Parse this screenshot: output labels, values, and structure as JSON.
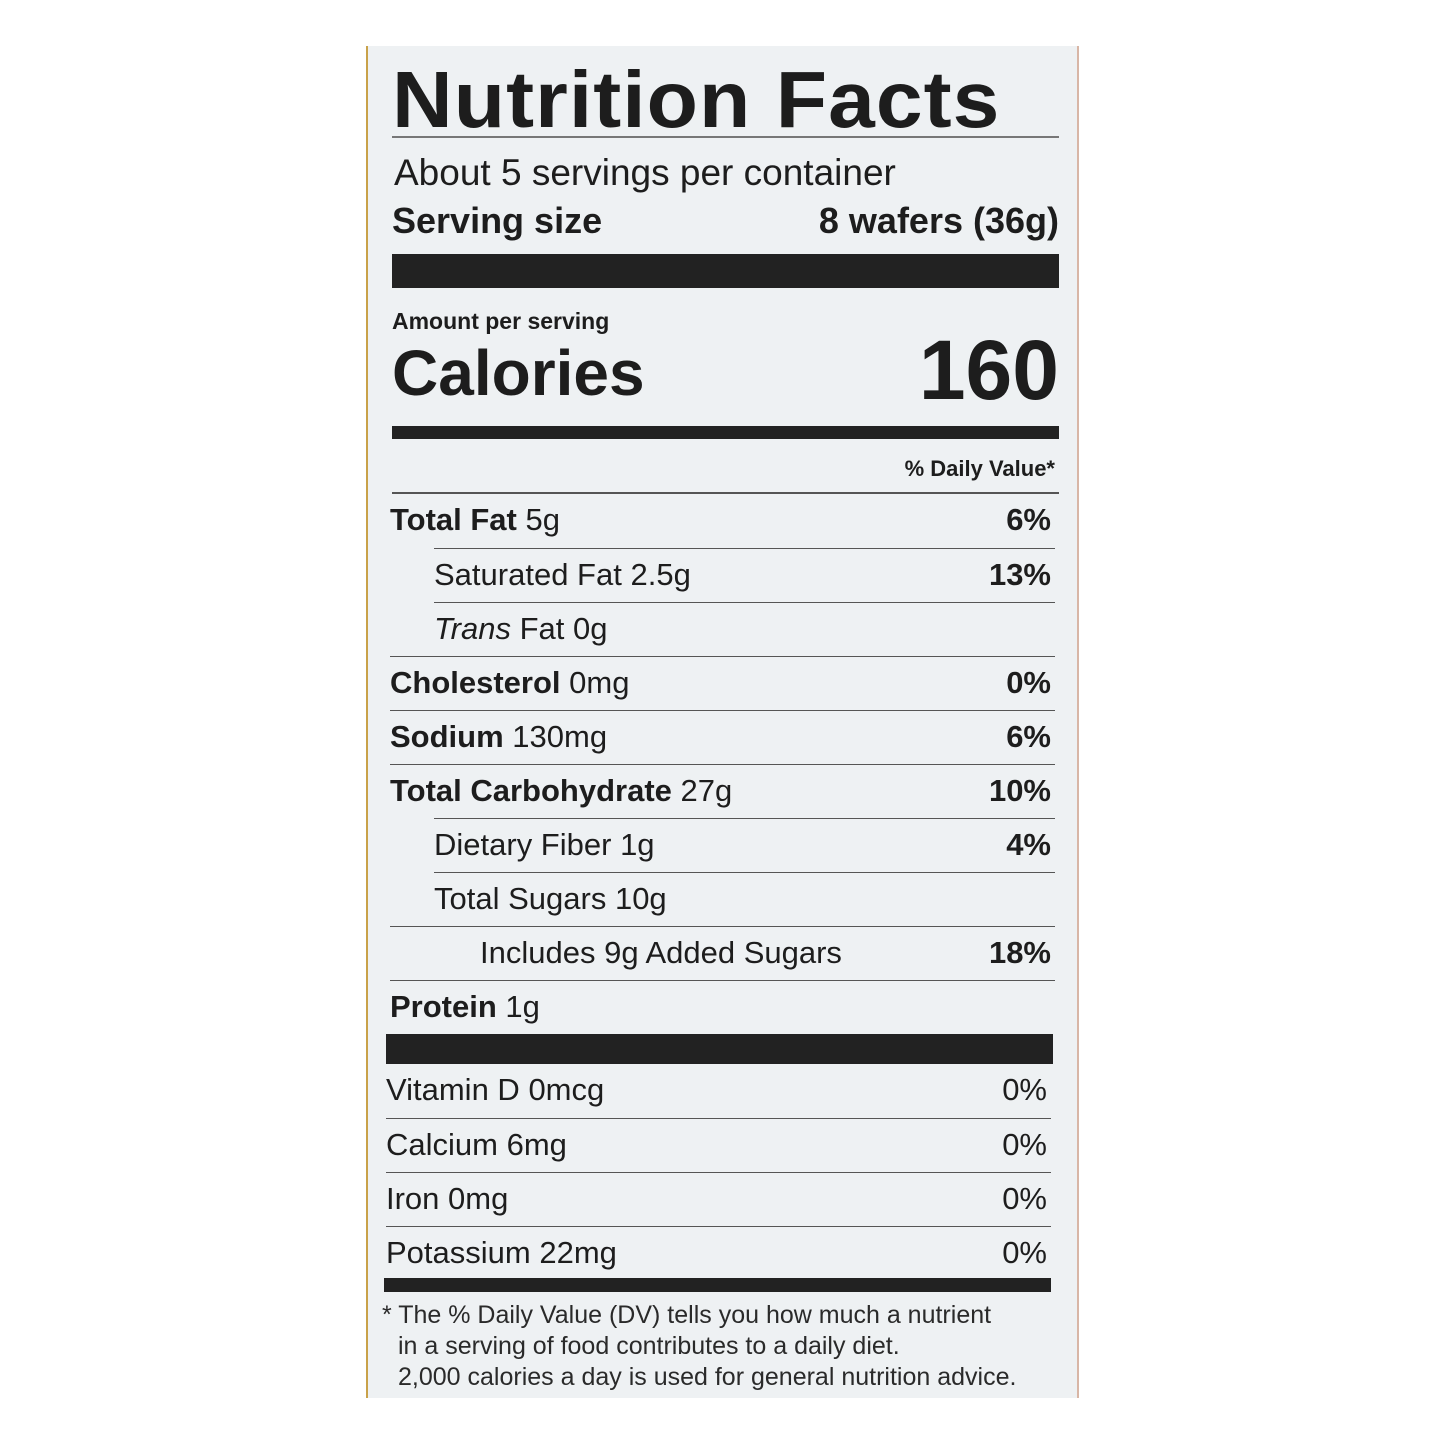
{
  "title": "Nutrition Facts",
  "servings_per_container": "About 5 servings per container",
  "serving_size_label": "Serving size",
  "serving_size_value": "8 wafers (36g)",
  "amount_per_serving": "Amount per serving",
  "calories_label": "Calories",
  "calories_value": "160",
  "daily_value_header": "% Daily Value*",
  "nutrients": [
    {
      "name": "Total Fat",
      "amount": "5g",
      "dv": "6%",
      "bold": true,
      "indent": 0
    },
    {
      "name": "Saturated Fat",
      "amount": "2.5g",
      "dv": "13%",
      "bold": false,
      "indent": 1
    },
    {
      "name": "Trans",
      "name_suffix": "Fat",
      "amount": "0g",
      "dv": "",
      "bold": false,
      "indent": 1
    },
    {
      "name": "Cholesterol",
      "amount": "0mg",
      "dv": "0%",
      "bold": true,
      "indent": 0
    },
    {
      "name": "Sodium",
      "amount": "130mg",
      "dv": "6%",
      "bold": true,
      "indent": 0
    },
    {
      "name": "Total Carbohydrate",
      "amount": "27g",
      "dv": "10%",
      "bold": true,
      "indent": 0
    },
    {
      "name": "Dietary Fiber",
      "amount": "1g",
      "dv": "4%",
      "bold": false,
      "indent": 1
    },
    {
      "name": "Total Sugars",
      "amount": "10g",
      "dv": "",
      "bold": false,
      "indent": 1
    },
    {
      "name": "Includes 9g Added Sugars",
      "amount": "",
      "dv": "18%",
      "bold": false,
      "indent": 2
    },
    {
      "name": "Protein",
      "amount": "1g",
      "dv": "",
      "bold": true,
      "indent": 0
    }
  ],
  "vitamins": [
    {
      "name": "Vitamin D",
      "amount": "0mcg",
      "dv": "0%"
    },
    {
      "name": "Calcium",
      "amount": "6mg",
      "dv": "0%"
    },
    {
      "name": "Iron",
      "amount": "0mg",
      "dv": "0%"
    },
    {
      "name": "Potassium",
      "amount": "22mg",
      "dv": "0%"
    }
  ],
  "footnote": [
    "* The % Daily Value (DV) tells you how much a nutrient",
    "in a serving of food contributes to a daily diet.",
    "2,000 calories a day is used for general nutrition advice."
  ]
}
